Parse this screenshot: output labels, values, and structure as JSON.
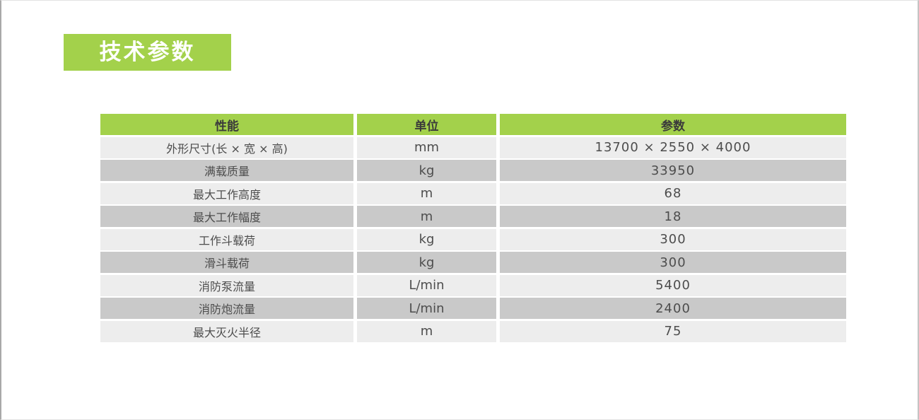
{
  "page": {
    "badge_title": "技术参数"
  },
  "colors": {
    "accent_green": "#a3d14b",
    "row_light": "#ededed",
    "row_dark": "#c9c9c9",
    "header_text": "#3b3b3b",
    "body_text": "#4d4d4d"
  },
  "table": {
    "headers": [
      "性能",
      "单位",
      "参数"
    ],
    "rows": [
      {
        "label": "外形尺寸(长 × 宽 × 高)",
        "unit": "mm",
        "value": "13700 × 2550 × 4000"
      },
      {
        "label": "满载质量",
        "unit": "kg",
        "value": "33950"
      },
      {
        "label": "最大工作高度",
        "unit": "m",
        "value": "68"
      },
      {
        "label": "最大工作幅度",
        "unit": "m",
        "value": "18"
      },
      {
        "label": "工作斗载荷",
        "unit": "kg",
        "value": "300"
      },
      {
        "label": "滑斗载荷",
        "unit": "kg",
        "value": "300"
      },
      {
        "label": "消防泵流量",
        "unit": "L/min",
        "value": "5400"
      },
      {
        "label": "消防炮流量",
        "unit": "L/min",
        "value": "2400"
      },
      {
        "label": "最大灭火半径",
        "unit": "m",
        "value": "75"
      }
    ]
  }
}
